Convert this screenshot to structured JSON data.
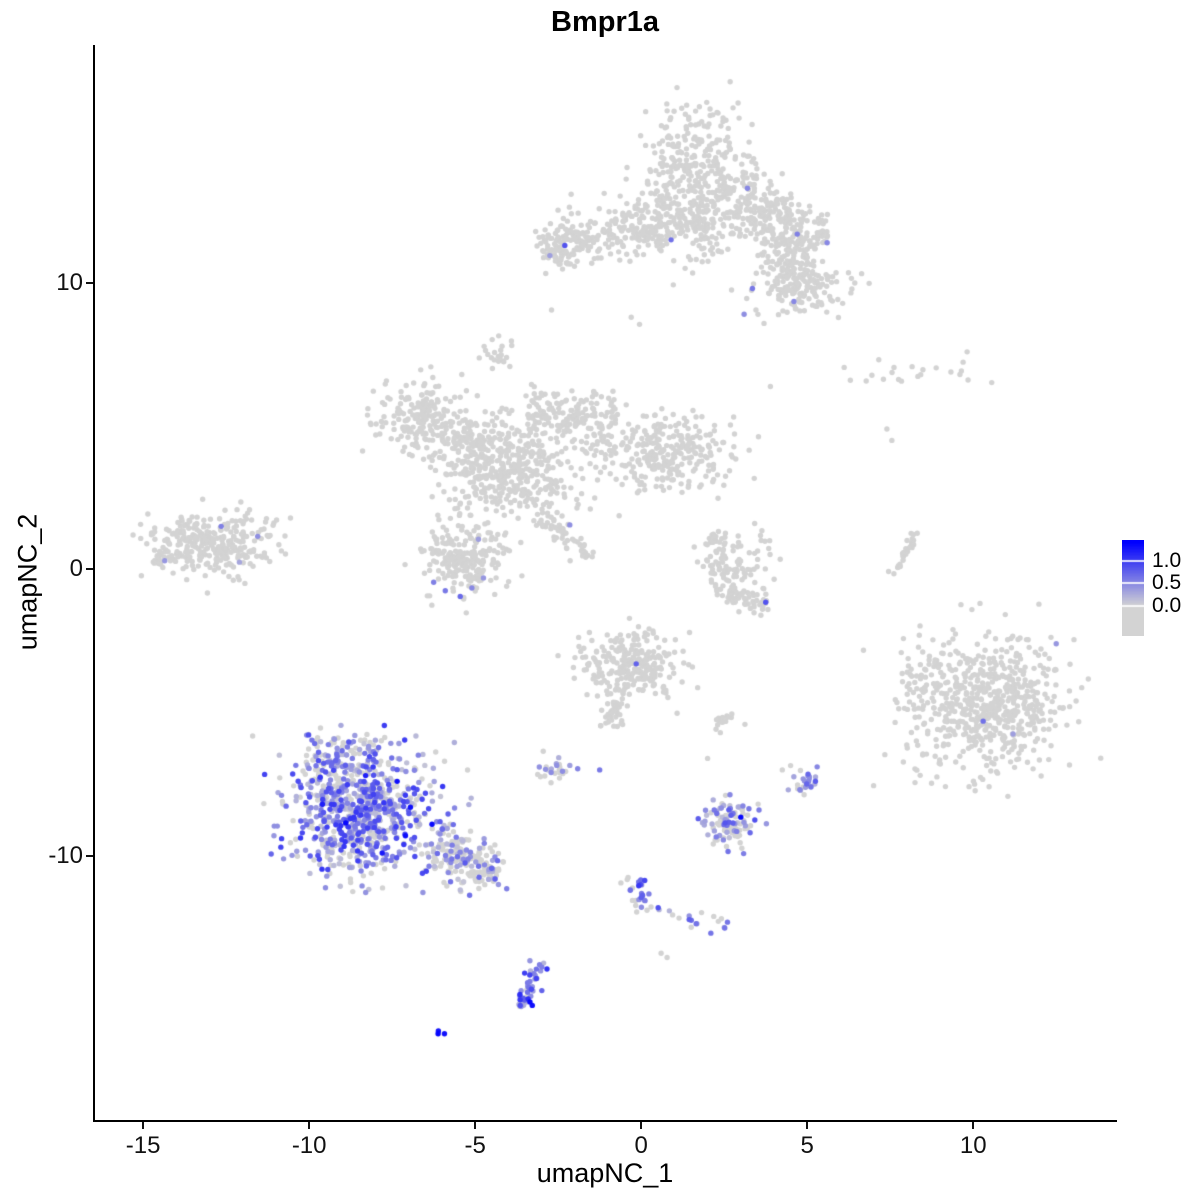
{
  "chart_data": {
    "type": "scatter",
    "title": "Bmpr1a",
    "xlabel": "umapNC_1",
    "ylabel": "umapNC_2",
    "xlim": [
      -16.45,
      14.27
    ],
    "ylim": [
      -19.22,
      18.3
    ],
    "x_ticks": [
      -15,
      -10,
      -5,
      0,
      5,
      10
    ],
    "y_ticks": [
      -10,
      0,
      10
    ],
    "grid": false,
    "point_radius": 2.7,
    "seed": 42,
    "legend": {
      "position": "right",
      "low_color": "#d3d3d3",
      "high_color": "#0000ff",
      "value_range": [
        0,
        1.4
      ],
      "domain": [
        -0.65,
        1.45
      ],
      "ticks": [
        {
          "label": "1.0",
          "value": 1.0
        },
        {
          "label": "0.5",
          "value": 0.5
        },
        {
          "label": "0.0",
          "value": 0.0
        }
      ]
    },
    "clusters": [
      {
        "name": "top-main",
        "cx": 1.6,
        "cy": 13.7,
        "sx": 0.95,
        "sy": 1.15,
        "n": 400
      },
      {
        "name": "top-main-lower",
        "cx": 1.0,
        "cy": 12.0,
        "sx": 1.25,
        "sy": 0.55,
        "n": 190
      },
      {
        "name": "top-left-arm",
        "line": [
          [
            -2.5,
            11.3
          ],
          [
            0.2,
            11.9
          ]
        ],
        "jitter": 0.32,
        "n": 110
      },
      {
        "name": "top-left-blob",
        "cx": -2.35,
        "cy": 11.35,
        "sx": 0.5,
        "sy": 0.45,
        "n": 100
      },
      {
        "name": "top-right-arm",
        "line": [
          [
            2.9,
            12.9
          ],
          [
            5.5,
            11.4
          ]
        ],
        "jitter": 0.5,
        "n": 230
      },
      {
        "name": "top-right-lower",
        "cx": 4.8,
        "cy": 9.9,
        "sx": 0.7,
        "sy": 0.55,
        "n": 170
      },
      {
        "name": "top-bridge",
        "line": [
          [
            3.8,
            11.2
          ],
          [
            4.6,
            10.4
          ]
        ],
        "jitter": 0.3,
        "n": 50
      },
      {
        "name": "mid-left-lobe",
        "cx": -6.6,
        "cy": 5.3,
        "sx": 0.7,
        "sy": 0.6,
        "n": 200
      },
      {
        "name": "mid-left-bridge",
        "line": [
          [
            -5.6,
            4.8
          ],
          [
            -4.6,
            4.2
          ]
        ],
        "jitter": 0.3,
        "n": 60
      },
      {
        "name": "mid-core",
        "cx": -4.0,
        "cy": 3.5,
        "sx": 1.0,
        "sy": 0.9,
        "n": 460
      },
      {
        "name": "mid-upper-strand",
        "line": [
          [
            -3.4,
            5.5
          ],
          [
            -0.7,
            5.3
          ]
        ],
        "jitter": 0.45,
        "n": 160
      },
      {
        "name": "mid-right-lobe",
        "cx": 0.7,
        "cy": 4.0,
        "sx": 1.05,
        "sy": 0.7,
        "n": 300
      },
      {
        "name": "mid-tail",
        "line": [
          [
            -3.1,
            1.9
          ],
          [
            -1.5,
            0.4
          ]
        ],
        "jitter": 0.16,
        "n": 60
      },
      {
        "name": "mid-top-blob",
        "cx": -4.4,
        "cy": 7.5,
        "sx": 0.28,
        "sy": 0.33,
        "n": 22
      },
      {
        "name": "left-cluster",
        "cx": -12.9,
        "cy": 0.9,
        "sx": 0.9,
        "sy": 0.55,
        "n": 300
      },
      {
        "name": "left-cluster-tip",
        "line": [
          [
            -14.7,
            0.25
          ],
          [
            -13.9,
            0.6
          ]
        ],
        "jitter": 0.18,
        "n": 25
      },
      {
        "name": "lower-mid-cluster",
        "cx": -5.3,
        "cy": 0.3,
        "sx": 0.6,
        "sy": 0.6,
        "n": 220
      },
      {
        "name": "crescent-upper",
        "line": [
          [
            2.2,
            1.3
          ],
          [
            2.6,
            -0.9
          ]
        ],
        "jitter": 0.28,
        "n": 85
      },
      {
        "name": "crescent-lower",
        "line": [
          [
            2.6,
            -0.9
          ],
          [
            3.9,
            -1.25
          ]
        ],
        "jitter": 0.22,
        "n": 65
      },
      {
        "name": "crescent-sparse",
        "cx": 3.3,
        "cy": 0.3,
        "sx": 0.45,
        "sy": 0.55,
        "n": 35
      },
      {
        "name": "right-thin-arc",
        "line": [
          [
            7.6,
            -0.2
          ],
          [
            8.3,
            1.3
          ]
        ],
        "jitter": 0.07,
        "n": 32
      },
      {
        "name": "topright-sparse",
        "cx": 8.6,
        "cy": 6.9,
        "sx": 1.1,
        "sy": 0.3,
        "n": 20
      },
      {
        "name": "right-cluster",
        "cx": 10.5,
        "cy": -4.7,
        "sx": 1.15,
        "sy": 1.2,
        "n": 600
      },
      {
        "name": "right-cluster-edge",
        "cx": 8.55,
        "cy": -4.0,
        "sx": 0.45,
        "sy": 0.85,
        "n": 55
      },
      {
        "name": "center-low",
        "cx": -0.3,
        "cy": -3.3,
        "sx": 0.72,
        "sy": 0.58,
        "n": 250
      },
      {
        "name": "center-low-tail",
        "line": [
          [
            -0.55,
            -4.0
          ],
          [
            -0.95,
            -5.6
          ]
        ],
        "jitter": 0.16,
        "n": 45
      },
      {
        "name": "center-low-right-blob",
        "cx": 2.5,
        "cy": -5.3,
        "sx": 0.22,
        "sy": 0.18,
        "n": 15
      },
      {
        "name": "bottomleft-main",
        "cx": -8.4,
        "cy": -8.5,
        "sx": 1.15,
        "sy": 1.1,
        "n": 760,
        "expr": {
          "frac": 0.68,
          "min": 0.1,
          "max": 1.05
        }
      },
      {
        "name": "bottomleft-top",
        "cx": -8.9,
        "cy": -6.5,
        "sx": 0.6,
        "sy": 0.4,
        "n": 90,
        "expr": {
          "frac": 0.55,
          "min": 0.1,
          "max": 0.8
        }
      },
      {
        "name": "bottomleft-tail",
        "line": [
          [
            -6.3,
            -9.7
          ],
          [
            -4.3,
            -10.6
          ]
        ],
        "jitter": 0.42,
        "n": 190,
        "expr": {
          "frac": 0.35,
          "min": 0.1,
          "max": 0.8
        }
      },
      {
        "name": "cluster-neg2-neg7",
        "cx": -2.6,
        "cy": -7.0,
        "sx": 0.28,
        "sy": 0.2,
        "n": 24,
        "expr": {
          "frac": 0.3,
          "min": 0.2,
          "max": 0.6
        }
      },
      {
        "name": "cluster-3-neg9",
        "cx": 2.7,
        "cy": -8.9,
        "sx": 0.4,
        "sy": 0.45,
        "n": 105,
        "expr": {
          "frac": 0.5,
          "min": 0.1,
          "max": 0.9
        }
      },
      {
        "name": "cluster-5-neg7",
        "cx": 5.0,
        "cy": -7.45,
        "sx": 0.2,
        "sy": 0.25,
        "n": 24,
        "expr": {
          "frac": 0.7,
          "min": 0.2,
          "max": 0.8
        }
      },
      {
        "name": "chain-clump",
        "cx": -0.05,
        "cy": -11.4,
        "sx": 0.16,
        "sy": 0.28,
        "n": 20,
        "expr": {
          "frac": 0.8,
          "min": 0.3,
          "max": 1.05
        }
      },
      {
        "name": "chain-line",
        "line": [
          [
            0.3,
            -11.75
          ],
          [
            2.6,
            -12.55
          ]
        ],
        "jitter": 0.18,
        "n": 20,
        "expr": {
          "frac": 0.55,
          "min": 0.2,
          "max": 0.9
        }
      },
      {
        "name": "chain-start",
        "line": [
          [
            -0.5,
            -10.8
          ],
          [
            -0.2,
            -11.1
          ]
        ],
        "jitter": 0.1,
        "n": 6,
        "expr": {
          "frac": 0.4,
          "min": 0.2,
          "max": 0.7
        }
      },
      {
        "name": "bottom-strip",
        "line": [
          [
            -3.55,
            -15.3
          ],
          [
            -3.05,
            -13.7
          ]
        ],
        "jitter": 0.13,
        "n": 48,
        "expr": {
          "frac": 0.8,
          "min": 0.2,
          "max": 1.1
        }
      },
      {
        "name": "dark-pair",
        "cx": -6.08,
        "cy": -16.2,
        "sx": 0.07,
        "sy": 0.06,
        "n": 3,
        "expr": {
          "frac": 1.0,
          "min": 1.2,
          "max": 1.4
        }
      }
    ],
    "expressed_singles": [
      [
        3.2,
        13.3,
        0.5
      ],
      [
        0.9,
        11.5,
        0.65
      ],
      [
        -2.3,
        11.3,
        0.85
      ],
      [
        -2.75,
        10.95,
        0.35
      ],
      [
        4.7,
        11.7,
        0.55
      ],
      [
        5.6,
        11.4,
        0.5
      ],
      [
        3.35,
        9.8,
        0.6
      ],
      [
        4.6,
        9.35,
        0.5
      ],
      [
        3.1,
        8.9,
        0.45
      ],
      [
        -12.65,
        1.5,
        0.55
      ],
      [
        -11.55,
        1.15,
        0.45
      ],
      [
        -14.35,
        0.3,
        0.4
      ],
      [
        -12.1,
        0.25,
        0.3
      ],
      [
        -2.15,
        1.55,
        0.45
      ],
      [
        -4.9,
        1.05,
        0.35
      ],
      [
        -5.9,
        -0.75,
        0.6
      ],
      [
        -5.45,
        -0.95,
        0.7
      ],
      [
        -5.1,
        -0.65,
        0.5
      ],
      [
        -6.25,
        -0.45,
        0.55
      ],
      [
        -4.75,
        -0.3,
        0.4
      ],
      [
        3.75,
        -1.15,
        0.85
      ],
      [
        12.5,
        -2.6,
        0.4
      ],
      [
        10.3,
        -5.3,
        0.65
      ],
      [
        11.2,
        -5.75,
        0.35
      ],
      [
        -0.15,
        -3.3,
        0.75
      ],
      [
        -1.25,
        -7.0,
        0.6
      ],
      [
        3.0,
        -8.65,
        1.35
      ],
      [
        2.2,
        -8.4,
        0.6
      ],
      [
        -8.9,
        -8.85,
        1.35
      ],
      [
        -7.35,
        -7.4,
        1.3
      ],
      [
        -6.95,
        -8.3,
        1.3
      ],
      [
        -7.8,
        -9.9,
        1.25
      ],
      [
        -9.6,
        -8.2,
        1.2
      ],
      [
        -6.3,
        -8.9,
        1.35
      ],
      [
        -8.3,
        -7.2,
        1.2
      ],
      [
        -7.1,
        -9.3,
        1.3
      ],
      [
        -4.05,
        -11.15,
        0.55
      ],
      [
        -4.3,
        -11.0,
        0.4
      ],
      [
        -3.35,
        -15.1,
        1.35
      ],
      [
        -3.28,
        -15.22,
        1.3
      ]
    ],
    "grey_singles": [
      [
        0.6,
        -13.4
      ],
      [
        0.78,
        -13.55
      ],
      [
        -2.95,
        -6.35
      ],
      [
        4.25,
        -7.0
      ],
      [
        4.5,
        -6.85
      ],
      [
        7.0,
        -7.55
      ],
      [
        -0.3,
        8.8
      ],
      [
        -0.05,
        8.55
      ],
      [
        -2.7,
        9.05
      ],
      [
        7.4,
        4.9
      ],
      [
        7.55,
        4.5
      ],
      [
        2.0,
        -6.6
      ],
      [
        6.3,
        6.6
      ],
      [
        9.6,
        6.8
      ]
    ]
  }
}
